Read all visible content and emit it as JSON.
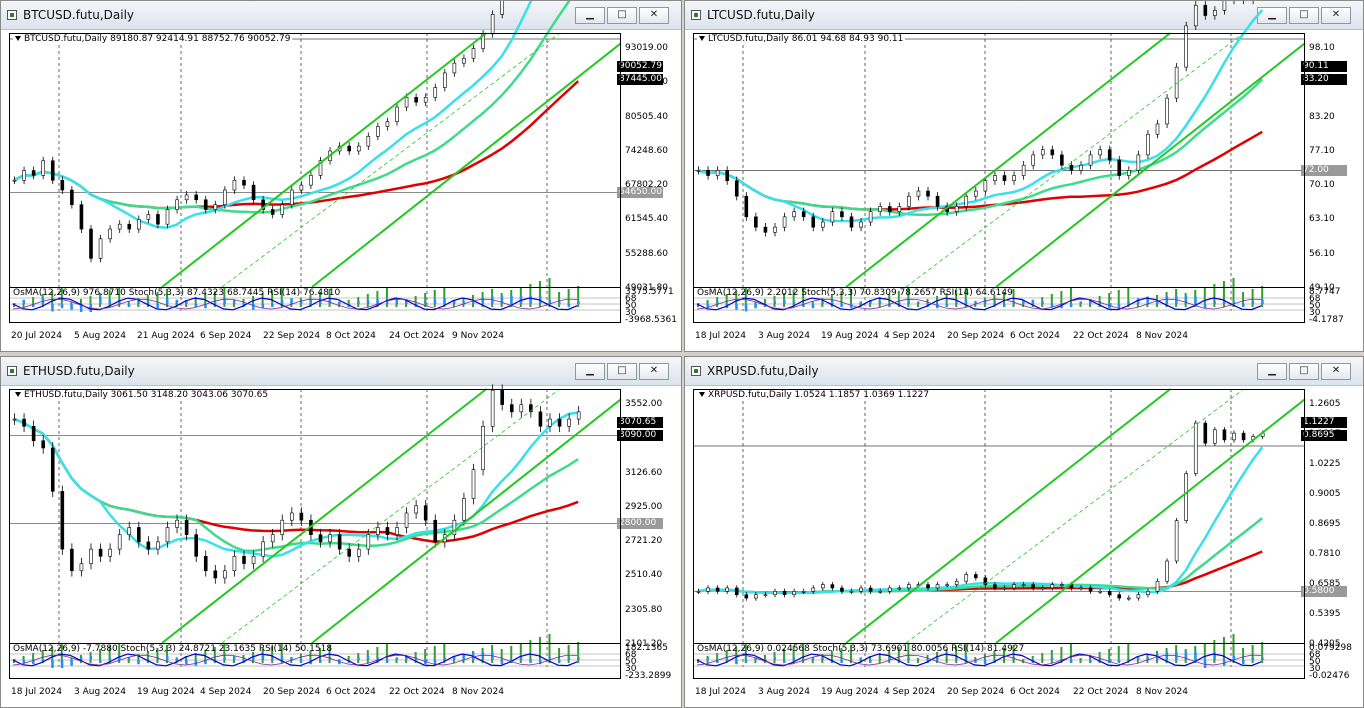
{
  "colors": {
    "ma_red": "#e00000",
    "ma_green": "#3cdc8c",
    "ma_cyan": "#38e0ec",
    "channel": "#22c922",
    "histogram": "#1e90ff",
    "stoch_blue": "#0000c8",
    "volume": "#2e9e2e"
  },
  "windows": [
    {
      "title": "BTCUSD.futu,Daily",
      "ohlc": "BTCUSD.futu,Daily  89180.87 92414.91 88752.76 90052.79",
      "price_ticks": [
        "93019.00",
        "87445.00",
        "80505.40",
        "74248.60",
        "67802.20",
        "61545.40",
        "55288.60",
        "49031.80"
      ],
      "price_range": [
        47000,
        94500
      ],
      "tag_current": "90052.79",
      "tag_level": "87445.00",
      "tag_level2": "64650.00",
      "level2_price": 64650,
      "indicator": "OsMA(12,26,9) 976.8710  Stoch(5,3,3) 87.4323 68.7445  RSI(14) 76.4810",
      "ind_ticks": [
        "3375.5771",
        "68",
        "50",
        "30",
        "-3968.5361"
      ],
      "dates": [
        "20 Jul 2024",
        "5 Aug 2024",
        "21 Aug 2024",
        "6 Sep 2024",
        "22 Sep 2024",
        "8 Oct 2024",
        "24 Oct 2024",
        "9 Nov 2024"
      ],
      "series": {
        "start": 67000,
        "moves": [
          0,
          2,
          -1,
          3,
          -4,
          -2,
          -3,
          -5,
          -6,
          4,
          2,
          1,
          -1,
          2,
          1,
          -2,
          3,
          2,
          1,
          -1,
          -2,
          1,
          3,
          2,
          -1,
          -3,
          -2,
          -1,
          2,
          3,
          1,
          2,
          3,
          2,
          1,
          -1,
          1,
          2,
          2,
          1,
          3,
          2,
          -1,
          1,
          2,
          3,
          2,
          1,
          2,
          3,
          4,
          6,
          8,
          7,
          5,
          6,
          2,
          1,
          -1,
          1
        ],
        "scale": 950
      }
    },
    {
      "title": "LTCUSD.futu,Daily",
      "ohlc": "LTCUSD.futu,Daily  86.01 94.68 84.93 90.11",
      "price_ticks": [
        "98.10",
        "90.11",
        "83.20",
        "77.10",
        "70.10",
        "63.10",
        "56.10",
        "49.10"
      ],
      "price_range": [
        48,
        100
      ],
      "tag_current": "90.11",
      "tag_level": "83.20",
      "tag_level2": "72.00",
      "level2_price": 72,
      "indicator": "OsMA(12,26,9) 2.2012  Stoch(5,3,3) 70.8309 78.2657  RSI(14) 64.6149",
      "ind_ticks": [
        "8.7747",
        "68",
        "50",
        "30",
        "-4.1787"
      ],
      "dates": [
        "18 Jul 2024",
        "3 Aug 2024",
        "19 Aug 2024",
        "4 Sep 2024",
        "20 Sep 2024",
        "6 Oct 2024",
        "22 Oct 2024",
        "8 Nov 2024"
      ],
      "series": {
        "start": 72,
        "moves": [
          0,
          -1,
          1,
          -2,
          -3,
          -4,
          -2,
          -1,
          1,
          2,
          1,
          -1,
          -2,
          1,
          2,
          -1,
          -2,
          1,
          2,
          1,
          -1,
          1,
          2,
          1,
          -1,
          -2,
          -1,
          1,
          2,
          1,
          2,
          1,
          -1,
          1,
          2,
          2,
          1,
          -1,
          -2,
          -1,
          1,
          2,
          1,
          -2,
          -3,
          1,
          3,
          4,
          2,
          5,
          6,
          8,
          4,
          -2,
          1,
          2,
          1,
          -1,
          1,
          2
        ],
        "scale": 1.1
      }
    },
    {
      "title": "ETHUSD.futu,Daily",
      "ohlc": "ETHUSD.futu,Daily  3061.50 3148.20 3043.06 3070.65",
      "price_ticks": [
        "3552.00",
        "3341.20",
        "3126.60",
        "2925.00",
        "2721.20",
        "2510.40",
        "2305.80",
        "2101.20"
      ],
      "price_range": [
        2080,
        3600
      ],
      "tag_current": "3070.65",
      "tag_level": "3090.00",
      "tag_level2": "2800.00",
      "level2_price": 2800,
      "indicator": "OsMA(12,26,9) -7.7880  Stoch(5,3,3) 24.8721 23.1635  RSI(14) 50.1518",
      "ind_ticks": [
        "182.1365",
        "68",
        "50",
        "30",
        "-233.2899"
      ],
      "dates": [
        "18 Jul 2024",
        "3 Aug 2024",
        "19 Aug 2024",
        "4 Sep 2024",
        "20 Sep 2024",
        "6 Oct 2024",
        "22 Oct 2024",
        "8 Nov 2024"
      ],
      "series": {
        "start": 3450,
        "moves": [
          0,
          -1,
          -2,
          -1,
          -6,
          -8,
          -3,
          1,
          2,
          -1,
          1,
          2,
          1,
          -2,
          -1,
          1,
          2,
          1,
          -2,
          -3,
          -2,
          -1,
          1,
          2,
          -1,
          1,
          2,
          1,
          2,
          1,
          -1,
          -2,
          -1,
          1,
          -2,
          -1,
          1,
          2,
          1,
          -1,
          1,
          2,
          1,
          -2,
          -3,
          1,
          2,
          3,
          4,
          6,
          5,
          -2,
          -1,
          1,
          -1,
          -2,
          1,
          -1,
          1,
          1
        ],
        "scale": 45
      }
    },
    {
      "title": "XRPUSD.futu,Daily",
      "ohlc": "XRPUSD.futu,Daily  1.0524 1.1857 1.0369 1.1227",
      "price_ticks": [
        "1.2605",
        "1.1227",
        "1.0225",
        "0.9005",
        "0.8695",
        "0.7810",
        "0.6585",
        "0.5395",
        "0.4205"
      ],
      "price_range": [
        0.41,
        1.28
      ],
      "tag_current": "1.1227",
      "tag_level": "0.8695",
      "tag_level2": "0.5800",
      "level2_price": 0.58,
      "indicator": "OsMA(12,26,9) 0.024568  Stoch(5,3,3) 73.6901 80.0056  RSI(14) 81.4927",
      "ind_ticks": [
        "0.079298",
        "68",
        "50",
        "30",
        "-0.02476"
      ],
      "dates": [
        "18 Jul 2024",
        "3 Aug 2024",
        "19 Aug 2024",
        "4 Sep 2024",
        "20 Sep 2024",
        "6 Oct 2024",
        "22 Oct 2024",
        "8 Nov 2024"
      ],
      "series": {
        "start": 0.58,
        "moves": [
          0,
          1,
          -1,
          1,
          -2,
          -1,
          1,
          0,
          1,
          -1,
          1,
          0,
          1,
          1,
          -1,
          -1,
          0,
          1,
          -1,
          0,
          1,
          0,
          1,
          0,
          -1,
          1,
          0,
          1,
          2,
          -1,
          -2,
          -1,
          0,
          1,
          0,
          -1,
          0,
          1,
          0,
          -1,
          0,
          -1,
          0,
          -1,
          -1,
          0,
          1,
          1,
          3,
          6,
          12,
          14,
          15,
          -6,
          4,
          -3,
          2,
          -2,
          1,
          1
        ],
        "scale": 0.012
      }
    }
  ]
}
